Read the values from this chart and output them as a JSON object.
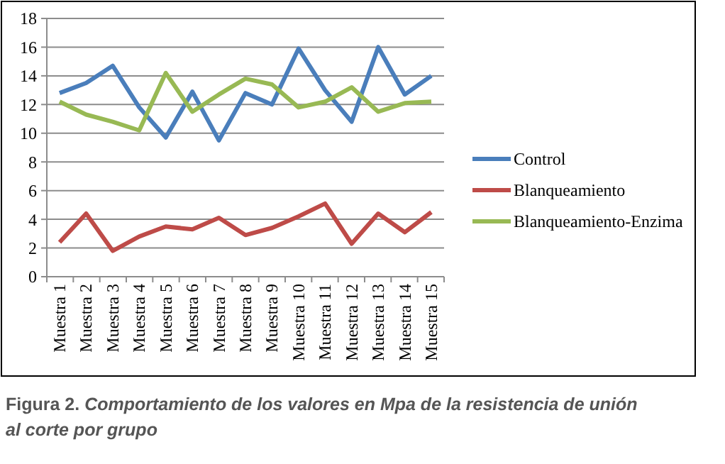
{
  "chart_data": {
    "type": "line",
    "categories": [
      "Muestra 1",
      "Muestra 2",
      "Muestra 3",
      "Muestra 4",
      "Muestra 5",
      "Muestra 6",
      "Muestra 7",
      "Muestra 8",
      "Muestra 9",
      "Muestra 10",
      "Muestra 11",
      "Muestra 12",
      "Muestra 13",
      "Muestra 14",
      "Muestra 15"
    ],
    "series": [
      {
        "name": "Control",
        "color": "#4a7ebb",
        "values": [
          12.8,
          13.5,
          14.7,
          11.8,
          9.7,
          12.9,
          9.5,
          12.8,
          12.0,
          15.9,
          13.0,
          10.8,
          16.0,
          12.7,
          14.0
        ]
      },
      {
        "name": "Blanqueamiento",
        "color": "#be4b48",
        "values": [
          2.4,
          4.4,
          1.8,
          2.8,
          3.5,
          3.3,
          4.1,
          2.9,
          3.4,
          4.2,
          5.1,
          2.3,
          4.4,
          3.1,
          4.5
        ]
      },
      {
        "name": "Blanqueamiento-Enzima",
        "color": "#98b954",
        "values": [
          12.2,
          11.3,
          10.8,
          10.2,
          14.2,
          11.5,
          12.7,
          13.8,
          13.4,
          11.8,
          12.2,
          13.2,
          11.5,
          12.1,
          12.2
        ]
      }
    ],
    "ylim": [
      0,
      18
    ],
    "yticks": [
      0,
      2,
      4,
      6,
      8,
      10,
      12,
      14,
      16,
      18
    ],
    "grid": "y",
    "legend": "right",
    "marker": "none",
    "line_style": "solid",
    "annotations": [
      "Figura 2. Comportamiento de los valores en Mpa de la resistencia de unión al corte por grupo"
    ]
  }
}
